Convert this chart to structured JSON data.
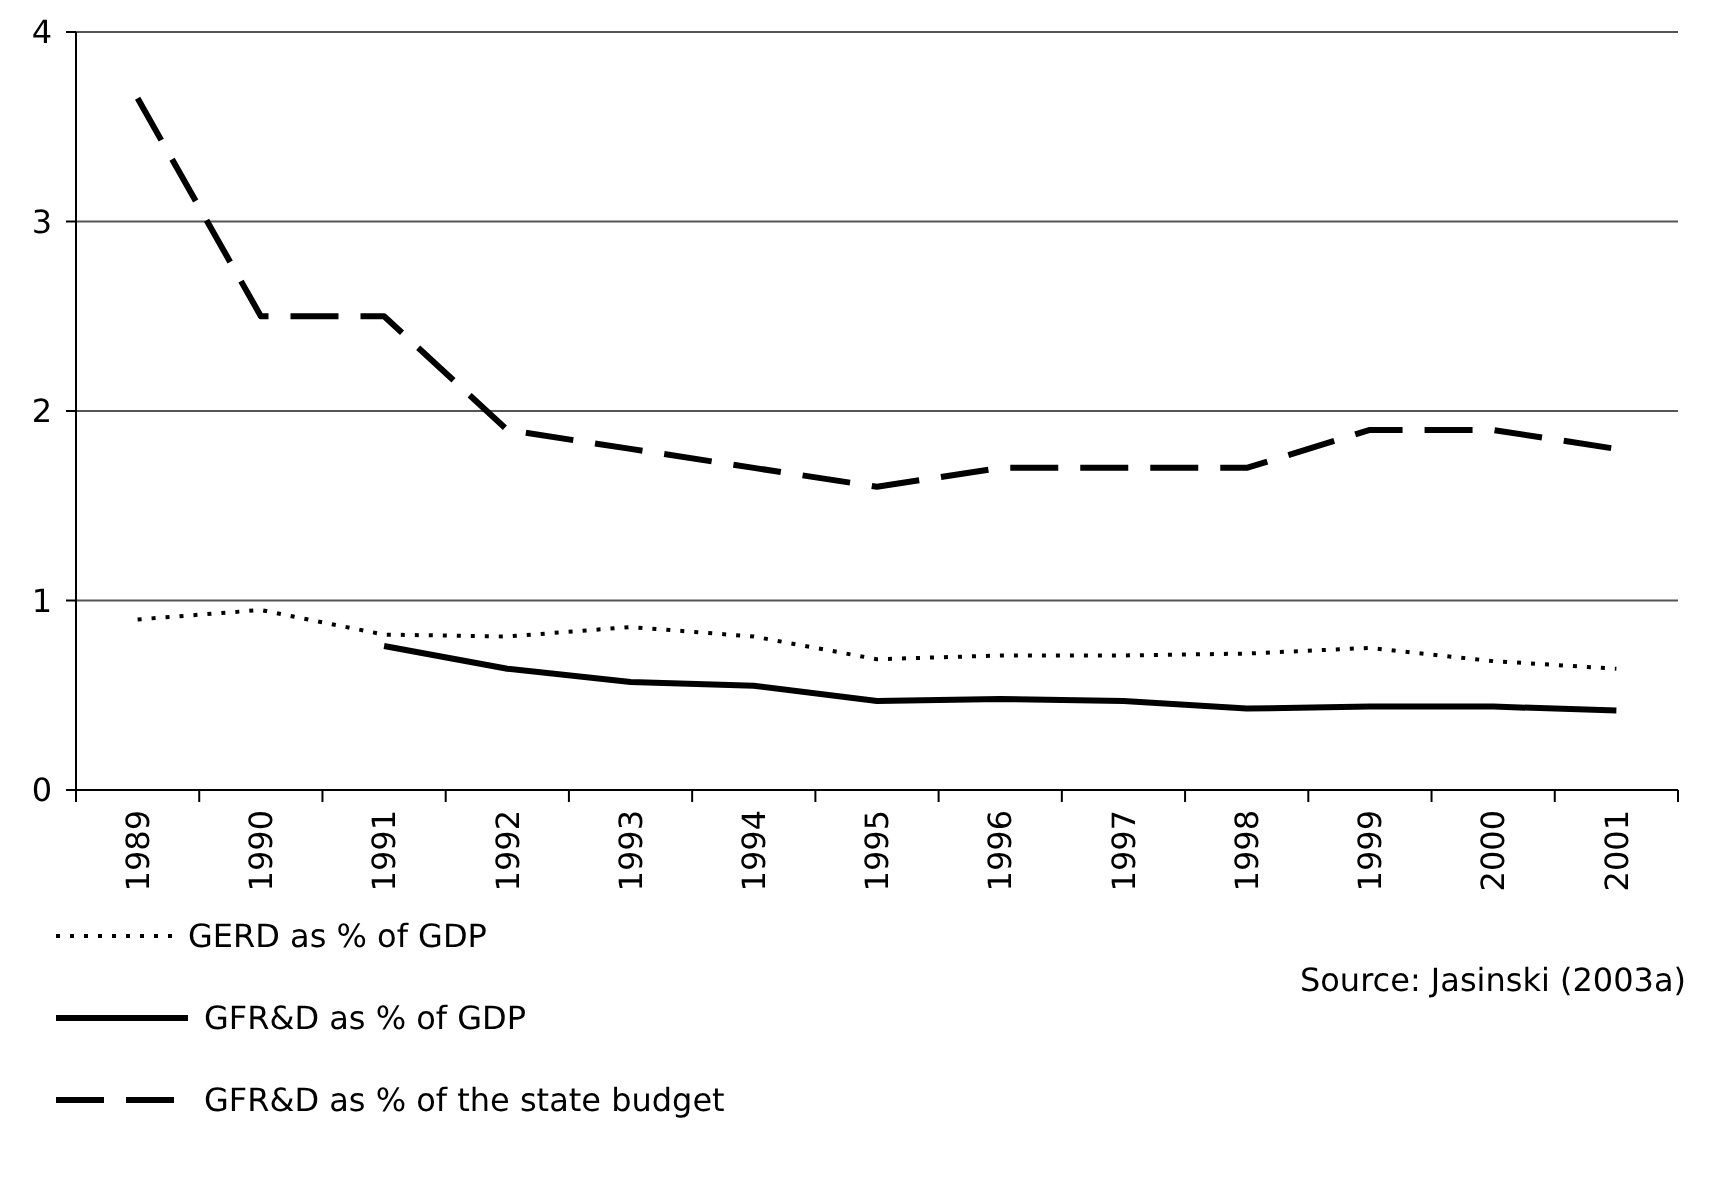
{
  "chart_data": {
    "type": "line",
    "categories": [
      "1989",
      "1990",
      "1991",
      "1992",
      "1993",
      "1994",
      "1995",
      "1996",
      "1997",
      "1998",
      "1999",
      "2000",
      "2001"
    ],
    "series": [
      {
        "name": "GERD as % of GDP",
        "color": "#000000",
        "line_style": "dotted",
        "values": [
          0.9,
          0.95,
          0.82,
          0.81,
          0.86,
          0.81,
          0.69,
          0.71,
          0.71,
          0.72,
          0.75,
          0.68,
          0.64
        ]
      },
      {
        "name": "GFR&D as % of GDP",
        "color": "#000000",
        "line_style": "solid",
        "values": [
          null,
          null,
          0.76,
          0.64,
          0.57,
          0.55,
          0.47,
          0.48,
          0.47,
          0.43,
          0.44,
          0.44,
          0.42
        ]
      },
      {
        "name": "GFR&D as % of the state budget",
        "color": "#000000",
        "line_style": "dashed",
        "values": [
          3.65,
          2.5,
          2.5,
          1.9,
          1.8,
          1.7,
          1.6,
          1.7,
          1.7,
          1.7,
          1.9,
          1.9,
          1.8
        ]
      }
    ],
    "ylim": [
      0,
      4
    ],
    "yticks": [
      0,
      1,
      2,
      3,
      4
    ],
    "grid": "y",
    "legend": "bottom",
    "marker": "none",
    "annotations": [
      "Source: Jasinski (2003a)"
    ]
  }
}
